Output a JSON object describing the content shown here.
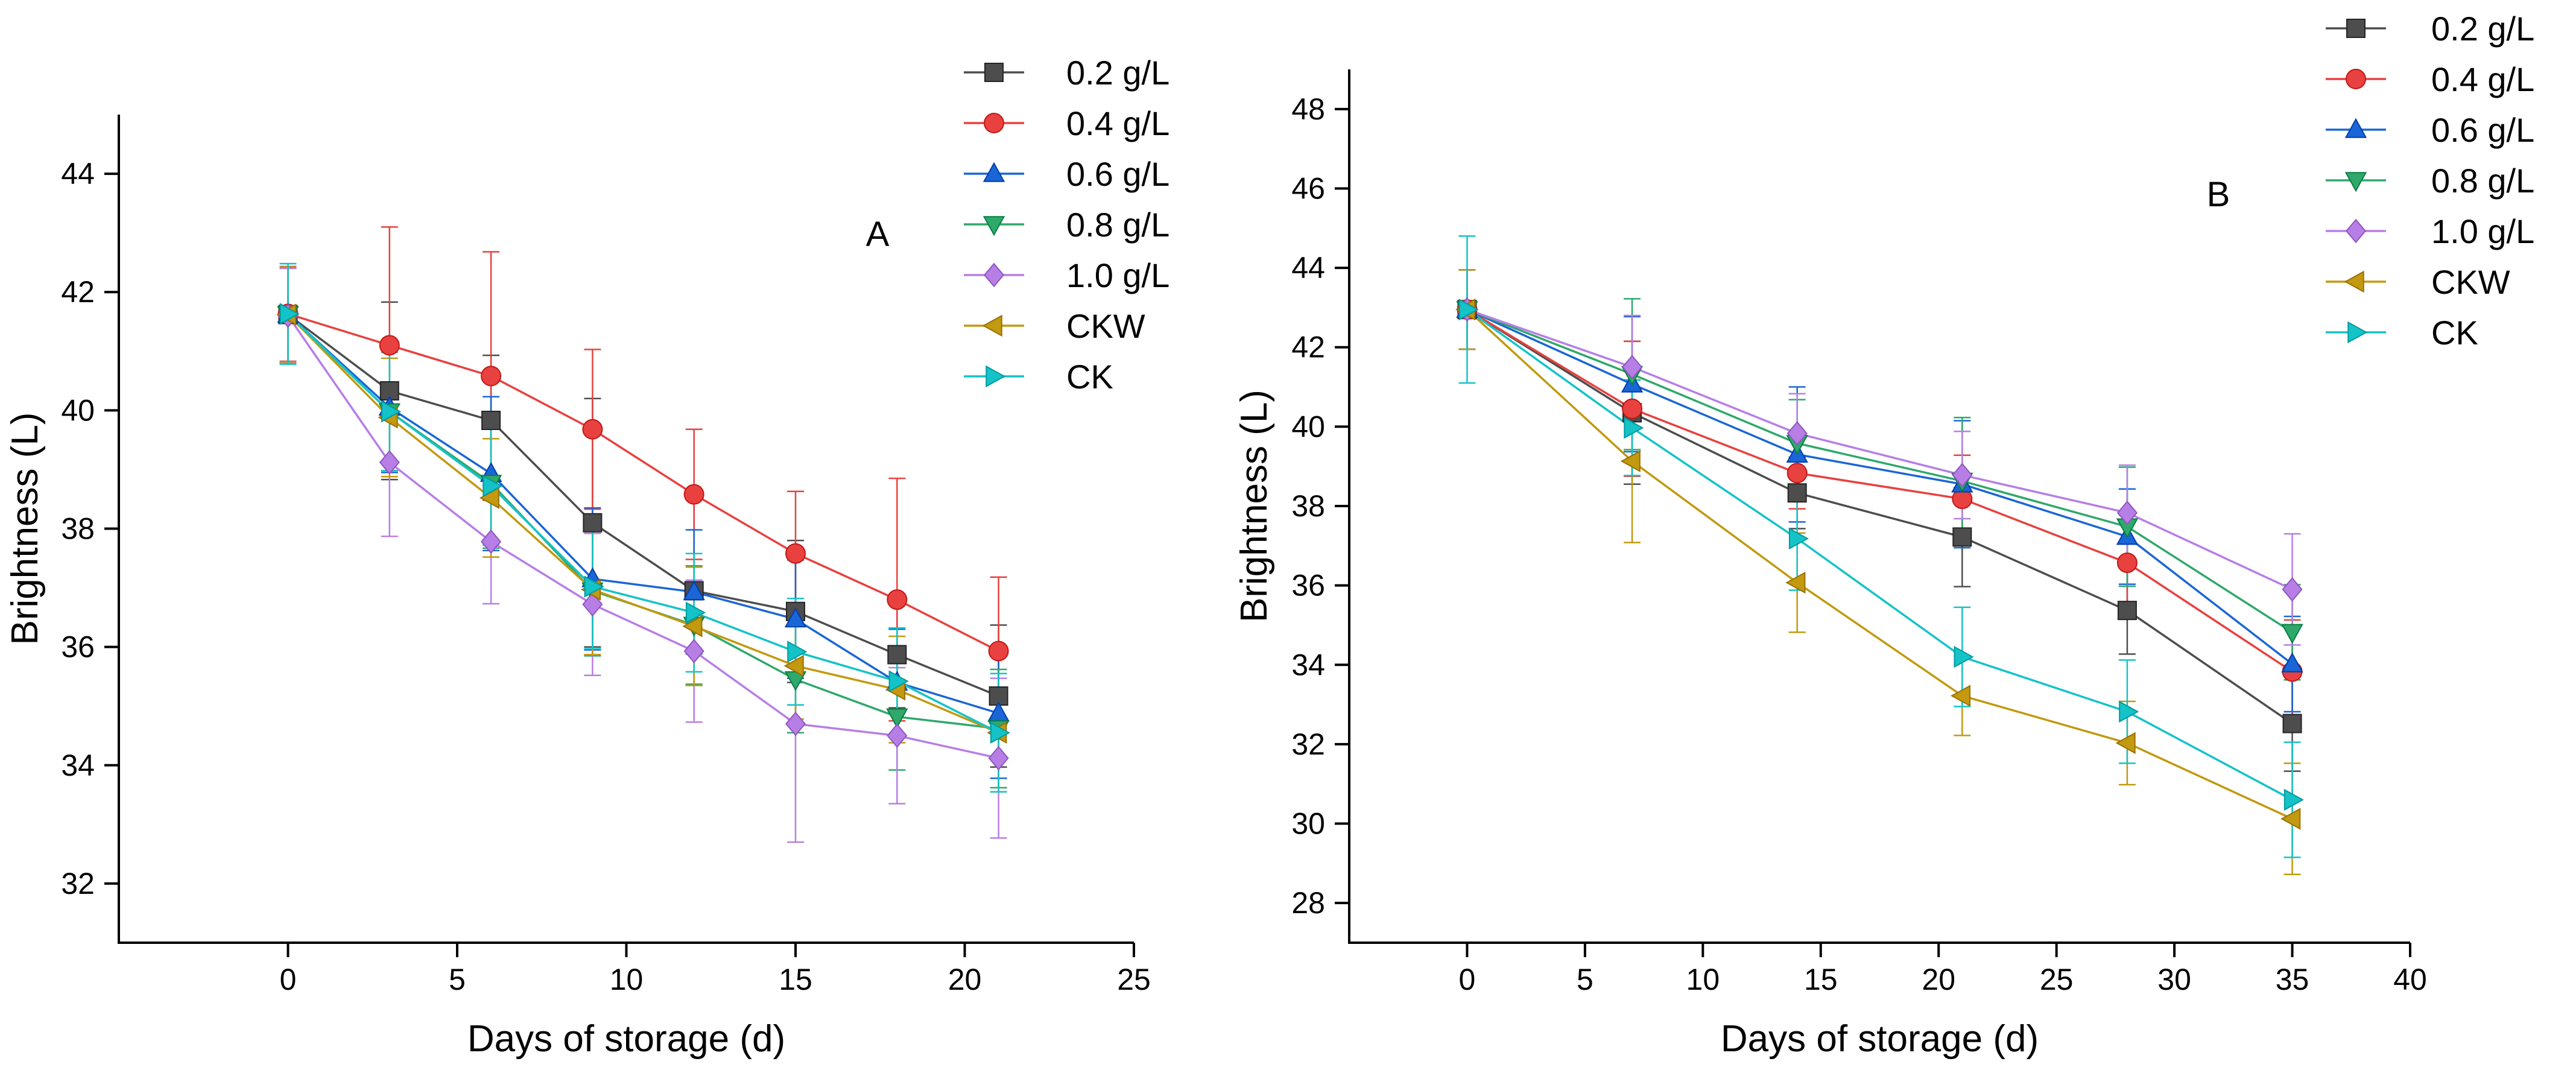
{
  "chart_data": [
    {
      "type": "line",
      "panel_label": "A",
      "xlabel": "Days of storage (d)",
      "ylabel": "Brightness (L)",
      "xlim": [
        -5,
        25
      ],
      "ylim": [
        31,
        45
      ],
      "xticks": [
        0,
        5,
        10,
        15,
        20,
        25
      ],
      "yticks": [
        32,
        34,
        36,
        38,
        40,
        42,
        44
      ],
      "x": [
        0,
        3,
        6,
        9,
        12,
        15,
        18,
        21
      ],
      "legend_position": "top-right",
      "series": [
        {
          "name": "0.2 g/L",
          "color": "#4d4d4d",
          "marker": "square",
          "values": [
            41.62,
            40.33,
            39.83,
            38.1,
            36.95,
            36.6,
            35.87,
            35.17
          ],
          "errors": [
            0.8,
            1.5,
            1.1,
            2.1,
            1.6,
            1.2,
            0.9,
            1.2
          ]
        },
        {
          "name": "0.4 g/L",
          "color": "#e8413f",
          "marker": "circle",
          "values": [
            41.63,
            41.1,
            40.58,
            39.68,
            38.58,
            37.58,
            36.8,
            35.93
          ],
          "errors": [
            0.8,
            2.0,
            2.1,
            1.35,
            1.1,
            1.05,
            2.05,
            1.25
          ]
        },
        {
          "name": "0.6 g/L",
          "color": "#1a66d6",
          "marker": "triangle-up",
          "values": [
            41.62,
            40.05,
            38.93,
            37.15,
            36.93,
            36.47,
            35.4,
            34.88
          ],
          "errors": [
            0.8,
            1.1,
            1.3,
            1.2,
            1.05,
            1.0,
            0.9,
            1.1
          ]
        },
        {
          "name": "0.8 g/L",
          "color": "#2fa86b",
          "marker": "triangle-down",
          "values": [
            41.62,
            39.98,
            38.77,
            36.95,
            36.37,
            35.45,
            34.82,
            34.62
          ],
          "errors": [
            0.8,
            1.0,
            1.1,
            1.1,
            1.0,
            0.9,
            0.9,
            1.0
          ]
        },
        {
          "name": "1.0 g/L",
          "color": "#b77ee6",
          "marker": "diamond",
          "values": [
            41.6,
            39.12,
            37.78,
            36.72,
            35.93,
            34.7,
            34.5,
            34.12
          ],
          "errors": [
            0.8,
            1.25,
            1.05,
            1.2,
            1.2,
            2.0,
            1.15,
            1.35
          ]
        },
        {
          "name": "CKW",
          "color": "#c2990f",
          "marker": "triangle-left",
          "values": [
            41.62,
            39.88,
            38.52,
            36.97,
            36.35,
            35.68,
            35.28,
            34.55
          ],
          "errors": [
            0.8,
            1.0,
            1.0,
            1.1,
            1.0,
            0.9,
            0.9,
            1.0
          ]
        },
        {
          "name": "CK",
          "color": "#14c3c7",
          "marker": "triangle-right",
          "values": [
            41.63,
            39.98,
            38.72,
            37.02,
            36.58,
            35.92,
            35.42,
            34.55
          ],
          "errors": [
            0.85,
            1.0,
            1.0,
            1.05,
            1.0,
            0.9,
            0.9,
            1.0
          ]
        }
      ]
    },
    {
      "type": "line",
      "panel_label": "B",
      "xlabel": "Days of storage (d)",
      "ylabel": "Brightness (L)",
      "xlim": [
        -5,
        40
      ],
      "ylim": [
        27,
        49
      ],
      "xticks": [
        0,
        5,
        10,
        15,
        20,
        25,
        30,
        35,
        40
      ],
      "yticks": [
        28,
        30,
        32,
        34,
        36,
        38,
        40,
        42,
        44,
        46,
        48
      ],
      "x": [
        0,
        7,
        14,
        21,
        28,
        35
      ],
      "legend_position": "top-right",
      "series": [
        {
          "name": "0.2 g/L",
          "color": "#4d4d4d",
          "marker": "square",
          "values": [
            42.95,
            40.35,
            38.33,
            37.22,
            35.37,
            32.52
          ],
          "errors": [
            1.0,
            1.8,
            0.9,
            1.25,
            1.1,
            1.2
          ]
        },
        {
          "name": "0.4 g/L",
          "color": "#e8413f",
          "marker": "circle",
          "values": [
            42.95,
            40.45,
            38.83,
            38.18,
            36.57,
            33.83
          ],
          "errors": [
            1.0,
            1.7,
            0.9,
            1.1,
            1.2,
            1.3
          ]
        },
        {
          "name": "0.6 g/L",
          "color": "#1a66d6",
          "marker": "triangle-up",
          "values": [
            42.95,
            41.07,
            39.3,
            38.55,
            37.23,
            34.02
          ],
          "errors": [
            1.0,
            1.7,
            1.7,
            1.6,
            1.2,
            1.2
          ]
        },
        {
          "name": "0.8 g/L",
          "color": "#2fa86b",
          "marker": "triangle-down",
          "values": [
            42.95,
            41.32,
            39.58,
            38.63,
            37.48,
            34.82
          ],
          "errors": [
            1.0,
            1.9,
            1.1,
            1.6,
            1.5,
            1.2
          ]
        },
        {
          "name": "1.0 g/L",
          "color": "#b77ee6",
          "marker": "diamond",
          "values": [
            42.95,
            41.5,
            39.83,
            38.78,
            37.83,
            35.9
          ],
          "errors": [
            1.0,
            1.3,
            1.0,
            1.1,
            1.2,
            1.4
          ]
        },
        {
          "name": "CKW",
          "color": "#c2990f",
          "marker": "triangle-left",
          "values": [
            42.95,
            39.13,
            36.07,
            33.22,
            32.03,
            30.12
          ],
          "errors": [
            1.0,
            2.05,
            1.25,
            1.0,
            1.05,
            1.4
          ]
        },
        {
          "name": "CK",
          "color": "#14c3c7",
          "marker": "triangle-right",
          "values": [
            42.95,
            39.97,
            37.18,
            34.2,
            32.82,
            30.6
          ],
          "errors": [
            1.85,
            1.2,
            1.3,
            1.25,
            1.3,
            1.45
          ]
        }
      ]
    }
  ]
}
